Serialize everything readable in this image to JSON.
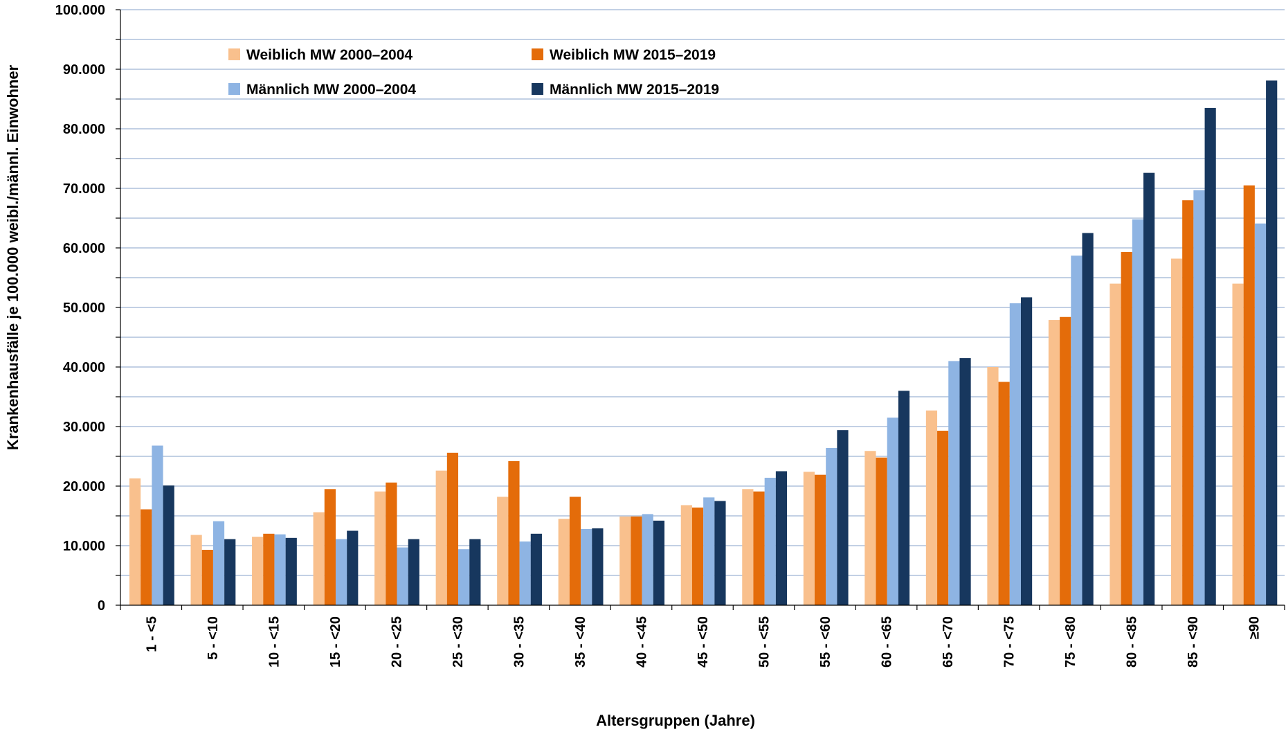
{
  "chart_data": {
    "type": "bar",
    "title": "",
    "xlabel": "Altersgruppen (Jahre)",
    "ylabel": "Krankenhausfälle je 100.000 weibl./männl. Einwohner",
    "ylim": [
      0,
      100000
    ],
    "grid": true,
    "legend_position": "top-left",
    "y_ticks": [
      {
        "value": 0,
        "label": "0"
      },
      {
        "value": 10000,
        "label": "10.000"
      },
      {
        "value": 20000,
        "label": "20.000"
      },
      {
        "value": 30000,
        "label": "30.000"
      },
      {
        "value": 40000,
        "label": "40.000"
      },
      {
        "value": 50000,
        "label": "50.000"
      },
      {
        "value": 60000,
        "label": "60.000"
      },
      {
        "value": 70000,
        "label": "70.000"
      },
      {
        "value": 80000,
        "label": "80.000"
      },
      {
        "value": 90000,
        "label": "90.000"
      },
      {
        "value": 100000,
        "label": "100.000"
      }
    ],
    "categories": [
      "1 - <5",
      "5 - <10",
      "10 - <15",
      "15 - <20",
      "20 - <25",
      "25 - <30",
      "30 - <35",
      "35 - <40",
      "40 - <45",
      "45 - <50",
      "50 - <55",
      "55 - <60",
      "60 - <65",
      "65 - <70",
      "70 - <75",
      "75 - <80",
      "80 - <85",
      "85 - <90",
      "≥90"
    ],
    "series": [
      {
        "name": "Weiblich MW 2000–2004",
        "color": "#F9C08D",
        "values": [
          21300,
          11800,
          11500,
          15600,
          19100,
          22600,
          18200,
          14500,
          14900,
          16800,
          19500,
          22400,
          25900,
          32700,
          40000,
          47900,
          54000,
          58200,
          54000
        ]
      },
      {
        "name": "Weiblich MW 2015–2019",
        "color": "#E46C0A",
        "values": [
          16100,
          9300,
          12000,
          19500,
          20600,
          25600,
          24200,
          18200,
          14900,
          16400,
          19100,
          21900,
          24800,
          29300,
          37500,
          48400,
          59300,
          68000,
          70500
        ]
      },
      {
        "name": "Männlich MW 2000–2004",
        "color": "#8EB4E3",
        "values": [
          26800,
          14100,
          11900,
          11100,
          9700,
          9400,
          10700,
          12800,
          15300,
          18100,
          21400,
          26400,
          31500,
          41000,
          50700,
          58700,
          64800,
          69700,
          64100
        ]
      },
      {
        "name": "Männlich MW 2015–2019",
        "color": "#17375E",
        "values": [
          20100,
          11100,
          11300,
          12500,
          11100,
          11100,
          12000,
          12900,
          14200,
          17500,
          22500,
          29400,
          36000,
          41500,
          51700,
          62500,
          72600,
          83500,
          88100
        ]
      }
    ]
  }
}
